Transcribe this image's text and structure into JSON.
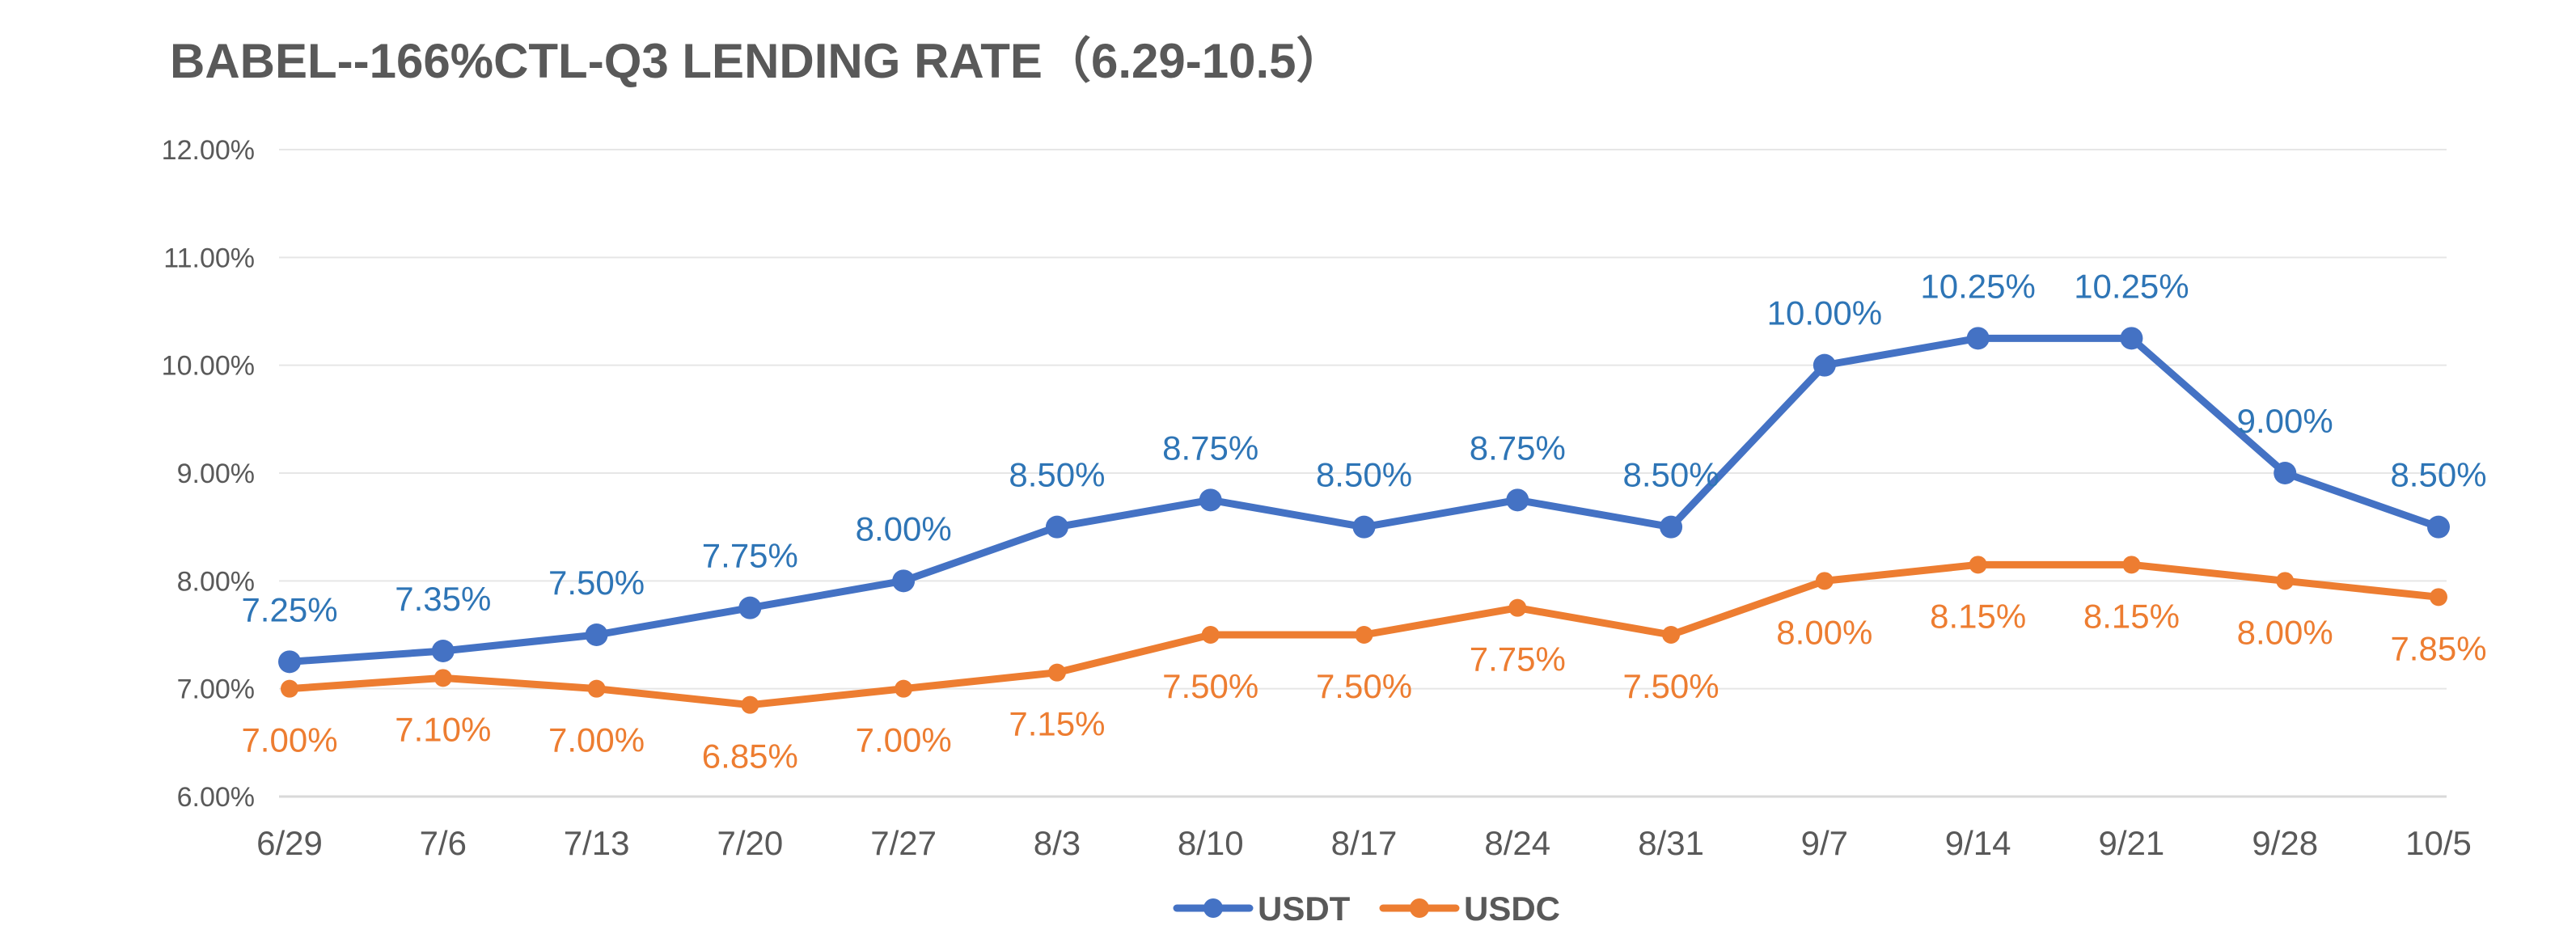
{
  "colors": {
    "usdt_line": "#4472C4",
    "usdc_line": "#ED7D31",
    "usdt_label": "#2E75B6",
    "usdc_label": "#ED7D31",
    "text": "#595959",
    "grid": "#E6E6E6"
  },
  "chart_data": {
    "type": "line",
    "title": "BABEL--166%CTL-Q3 LENDING RATE（6.29-10.5）",
    "xlabel": "",
    "ylabel": "",
    "grid": true,
    "legend_position": "bottom-center",
    "ylim": [
      6,
      12
    ],
    "y_ticks": [
      "12.00%",
      "11.00%",
      "10.00%",
      "9.00%",
      "8.00%",
      "7.00%",
      "6.00%"
    ],
    "categories": [
      "6/29",
      "7/6",
      "7/13",
      "7/20",
      "7/27",
      "8/3",
      "8/10",
      "8/17",
      "8/24",
      "8/31",
      "9/7",
      "9/14",
      "9/21",
      "9/28",
      "10/5"
    ],
    "series": [
      {
        "name": "USDT",
        "values": [
          7.25,
          7.35,
          7.5,
          7.75,
          8.0,
          8.5,
          8.75,
          8.5,
          8.75,
          8.5,
          10.0,
          10.25,
          10.25,
          9.0,
          8.5
        ],
        "labels": [
          "7.25%",
          "7.35%",
          "7.50%",
          "7.75%",
          "8.00%",
          "8.50%",
          "8.75%",
          "8.50%",
          "8.75%",
          "8.50%",
          "10.00%",
          "10.25%",
          "10.25%",
          "9.00%",
          "8.50%"
        ],
        "label_position": "above"
      },
      {
        "name": "USDC",
        "values": [
          7.0,
          7.1,
          7.0,
          6.85,
          7.0,
          7.15,
          7.5,
          7.5,
          7.75,
          7.5,
          8.0,
          8.15,
          8.15,
          8.0,
          7.85
        ],
        "labels": [
          "7.00%",
          "7.10%",
          "7.00%",
          "6.85%",
          "7.00%",
          "7.15%",
          "7.50%",
          "7.50%",
          "7.75%",
          "7.50%",
          "8.00%",
          "8.15%",
          "8.15%",
          "8.00%",
          "7.85%"
        ],
        "label_position": "below"
      }
    ]
  }
}
